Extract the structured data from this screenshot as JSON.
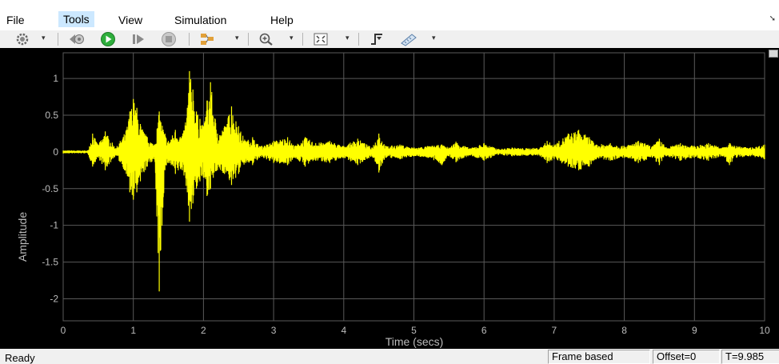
{
  "menu": {
    "file": "File",
    "tools": "Tools",
    "view": "View",
    "simulation": "Simulation",
    "help": "Help"
  },
  "toolbar_icons": [
    "gear-icon",
    "step-back-icon",
    "run-icon",
    "step-forward-icon",
    "stop-icon",
    "signal-select-icon",
    "zoom-in-icon",
    "fit-to-view-icon",
    "triggers-icon",
    "measurements-icon"
  ],
  "status": {
    "ready": "Ready",
    "mode": "Frame based",
    "offset": "Offset=0",
    "time": "T=9.985"
  },
  "colors": {
    "plot_background": "#000000",
    "signal": "#ffff00",
    "grid": "#5a5a5a",
    "axes_text": "#bcbcbc"
  },
  "chart_data": {
    "type": "line",
    "title": "",
    "xlabel": "Time (secs)",
    "ylabel": "Amplitude",
    "xlim": [
      0,
      10
    ],
    "ylim": [
      -2.3,
      1.35
    ],
    "xticks": [
      0,
      1,
      2,
      3,
      4,
      5,
      6,
      7,
      8,
      9,
      10
    ],
    "yticks": [
      1,
      0.5,
      0,
      -0.5,
      -1,
      -1.5,
      -2
    ],
    "ytick_labels": [
      "1",
      "0.5",
      "0",
      "-0.5",
      "-1",
      "-1.5",
      "-2"
    ],
    "grid": true,
    "series": [
      {
        "color": "#ffff00",
        "envelope": {
          "t": [
            0,
            0.35,
            0.42,
            0.5,
            0.6,
            0.75,
            0.9,
            0.95,
            1.0,
            1.05,
            1.1,
            1.2,
            1.3,
            1.37,
            1.45,
            1.5,
            1.6,
            1.7,
            1.77,
            1.8,
            1.85,
            1.9,
            1.95,
            2.0,
            2.05,
            2.1,
            2.2,
            2.3,
            2.4,
            2.5,
            2.6,
            2.7,
            2.8,
            2.9,
            3.0,
            3.2,
            3.3,
            3.45,
            3.6,
            3.8,
            4.0,
            4.2,
            4.4,
            4.5,
            4.6,
            4.8,
            5.0,
            5.2,
            5.4,
            5.5,
            5.6,
            5.8,
            6.0,
            6.2,
            6.4,
            6.6,
            6.8,
            6.9,
            7.0,
            7.2,
            7.35,
            7.5,
            7.6,
            7.8,
            8.0,
            8.2,
            8.4,
            8.5,
            8.6,
            8.8,
            9.0,
            9.2,
            9.4,
            9.5,
            9.6,
            9.8,
            10.0
          ],
          "upper": [
            0.02,
            0.02,
            0.25,
            0.1,
            0.28,
            0.05,
            0.3,
            0.55,
            0.72,
            0.6,
            0.38,
            0.2,
            0.1,
            0.55,
            0.25,
            0.15,
            0.3,
            0.22,
            0.6,
            1.1,
            0.85,
            0.55,
            0.45,
            0.35,
            0.7,
            0.95,
            0.25,
            0.35,
            0.62,
            0.35,
            0.15,
            0.2,
            0.08,
            0.1,
            0.15,
            0.2,
            0.08,
            0.2,
            0.12,
            0.15,
            0.08,
            0.18,
            0.06,
            0.25,
            0.08,
            0.1,
            0.06,
            0.08,
            0.1,
            0.06,
            0.14,
            0.05,
            0.12,
            0.04,
            0.06,
            0.05,
            0.06,
            0.15,
            0.1,
            0.25,
            0.3,
            0.2,
            0.1,
            0.12,
            0.08,
            0.15,
            0.08,
            0.18,
            0.06,
            0.12,
            0.08,
            0.12,
            0.06,
            0.12,
            0.08,
            0.06,
            0.1
          ],
          "lower": [
            -0.02,
            -0.02,
            -0.2,
            -0.08,
            -0.25,
            -0.05,
            -0.3,
            -0.55,
            -0.65,
            -0.55,
            -0.4,
            -0.2,
            -0.1,
            -1.9,
            -0.25,
            -0.15,
            -0.3,
            -0.25,
            -0.55,
            -0.95,
            -0.7,
            -0.5,
            -0.4,
            -0.35,
            -0.6,
            -0.5,
            -0.25,
            -0.3,
            -0.45,
            -0.3,
            -0.15,
            -0.18,
            -0.08,
            -0.1,
            -0.15,
            -0.18,
            -0.08,
            -0.2,
            -0.12,
            -0.15,
            -0.08,
            -0.18,
            -0.06,
            -0.28,
            -0.08,
            -0.1,
            -0.06,
            -0.08,
            -0.18,
            -0.06,
            -0.14,
            -0.05,
            -0.12,
            -0.04,
            -0.06,
            -0.05,
            -0.06,
            -0.15,
            -0.1,
            -0.2,
            -0.25,
            -0.2,
            -0.1,
            -0.12,
            -0.08,
            -0.15,
            -0.08,
            -0.18,
            -0.06,
            -0.12,
            -0.08,
            -0.12,
            -0.06,
            -0.18,
            -0.08,
            -0.06,
            -0.1
          ]
        }
      }
    ]
  }
}
